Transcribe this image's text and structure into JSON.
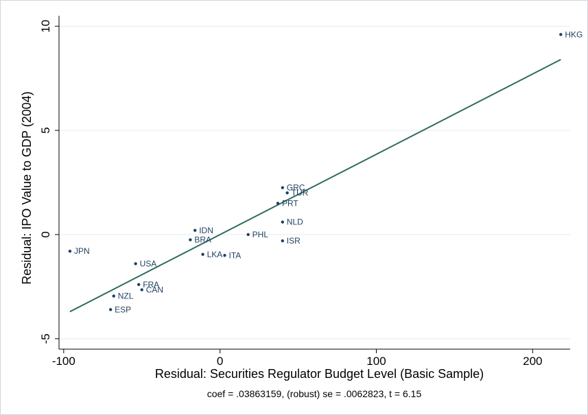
{
  "chart_data": {
    "type": "scatter",
    "xlabel": "Residual: Securities Regulator Budget Level (Basic Sample)",
    "ylabel": "Residual: IPO Value to GDP (2004)",
    "note": "coef = .03863159, (robust) se = .0062823, t = 6.15",
    "xlim": [
      -103,
      224
    ],
    "ylim": [
      -5.5,
      10.5
    ],
    "xticks": [
      -100,
      0,
      100,
      200
    ],
    "xtick_labels": [
      "-100",
      "0",
      "100",
      "200"
    ],
    "yticks": [
      -5,
      0,
      5,
      10
    ],
    "ytick_labels": [
      "-5",
      "0",
      "5",
      "10"
    ],
    "grid": "horizontal",
    "legend": "none",
    "colors": {
      "points": "#1f3f5f",
      "fit_line": "#2e6b5f",
      "grid": "#e6eaee",
      "axes": "#000000"
    },
    "points": [
      {
        "label": "HKG",
        "x": 218,
        "y": 9.6
      },
      {
        "label": "GRC",
        "x": 40,
        "y": 2.25
      },
      {
        "label": "TUR",
        "x": 43,
        "y": 2.0
      },
      {
        "label": "PRT",
        "x": 37,
        "y": 1.5
      },
      {
        "label": "NLD",
        "x": 40,
        "y": 0.6
      },
      {
        "label": "ISR",
        "x": 40,
        "y": -0.3
      },
      {
        "label": "PHL",
        "x": 18,
        "y": 0.0
      },
      {
        "label": "IDN",
        "x": -16,
        "y": 0.2
      },
      {
        "label": "BRA",
        "x": -19,
        "y": -0.25
      },
      {
        "label": "LKA",
        "x": -11,
        "y": -0.95
      },
      {
        "label": "ITA",
        "x": 3,
        "y": -1.0
      },
      {
        "label": "JPN",
        "x": -96,
        "y": -0.8
      },
      {
        "label": "USA",
        "x": -54,
        "y": -1.4
      },
      {
        "label": "FRA",
        "x": -52,
        "y": -2.4
      },
      {
        "label": "CAN",
        "x": -50,
        "y": -2.65
      },
      {
        "label": "NZL",
        "x": -68,
        "y": -2.95
      },
      {
        "label": "ESP",
        "x": -70,
        "y": -3.6
      }
    ],
    "fit_line": {
      "x": [
        -96,
        218
      ],
      "y": [
        -3.7,
        8.4
      ]
    }
  }
}
